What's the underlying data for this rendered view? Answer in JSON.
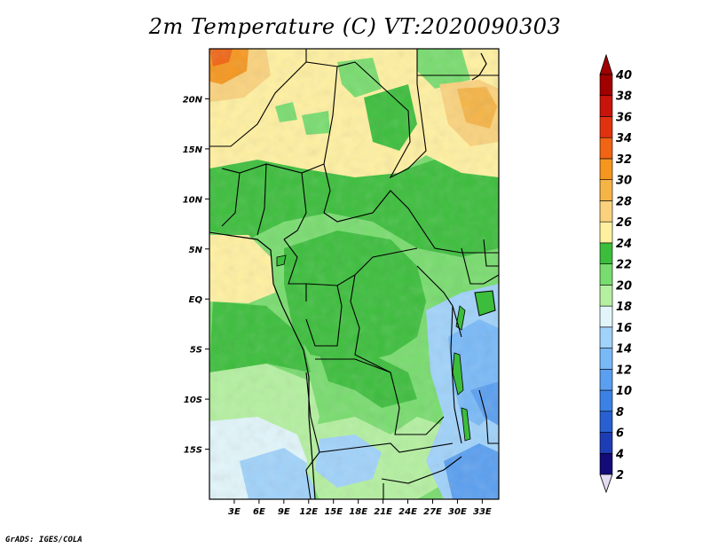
{
  "title": "2m Temperature (C) VT:2020090303",
  "credit": "GrADS: IGES/COLA",
  "map": {
    "lon_range": [
      0,
      35
    ],
    "lat_range": [
      -20,
      25
    ],
    "lon_ticks": [
      {
        "value": 3,
        "label": "3E"
      },
      {
        "value": 6,
        "label": "6E"
      },
      {
        "value": 9,
        "label": "9E"
      },
      {
        "value": 12,
        "label": "12E"
      },
      {
        "value": 15,
        "label": "15E"
      },
      {
        "value": 18,
        "label": "18E"
      },
      {
        "value": 21,
        "label": "21E"
      },
      {
        "value": 24,
        "label": "24E"
      },
      {
        "value": 27,
        "label": "27E"
      },
      {
        "value": 30,
        "label": "30E"
      },
      {
        "value": 33,
        "label": "33E"
      }
    ],
    "lat_ticks": [
      {
        "value": 20,
        "label": "20N"
      },
      {
        "value": 15,
        "label": "15N"
      },
      {
        "value": 10,
        "label": "10N"
      },
      {
        "value": 5,
        "label": "5N"
      },
      {
        "value": 0,
        "label": "EQ"
      },
      {
        "value": -5,
        "label": "5S"
      },
      {
        "value": -10,
        "label": "10S"
      },
      {
        "value": -15,
        "label": "15S"
      }
    ]
  },
  "colorbar": {
    "levels": [
      {
        "label": "2",
        "color": "#e6dcf2"
      },
      {
        "label": "4",
        "color": "#140a78"
      },
      {
        "label": "6",
        "color": "#1e3cb4"
      },
      {
        "label": "8",
        "color": "#2860d2"
      },
      {
        "label": "10",
        "color": "#3c82e6"
      },
      {
        "label": "12",
        "color": "#5a9ff0"
      },
      {
        "label": "14",
        "color": "#78b9f8"
      },
      {
        "label": "16",
        "color": "#a0d2fa"
      },
      {
        "label": "18",
        "color": "#e1f5fa"
      },
      {
        "label": "20",
        "color": "#b4f0a0"
      },
      {
        "label": "22",
        "color": "#78dc6e"
      },
      {
        "label": "24",
        "color": "#3cbe3c"
      },
      {
        "label": "26",
        "color": "#fff0a0"
      },
      {
        "label": "28",
        "color": "#fad27d"
      },
      {
        "label": "30",
        "color": "#f5b446"
      },
      {
        "label": "32",
        "color": "#f5961e"
      },
      {
        "label": "34",
        "color": "#f06414"
      },
      {
        "label": "36",
        "color": "#e1320f"
      },
      {
        "label": "38",
        "color": "#c8140a"
      },
      {
        "label": "40",
        "color": "#a00000"
      }
    ],
    "top_arrow_color": "#a00000",
    "bottom_arrow_color": "#e6dcf2"
  }
}
